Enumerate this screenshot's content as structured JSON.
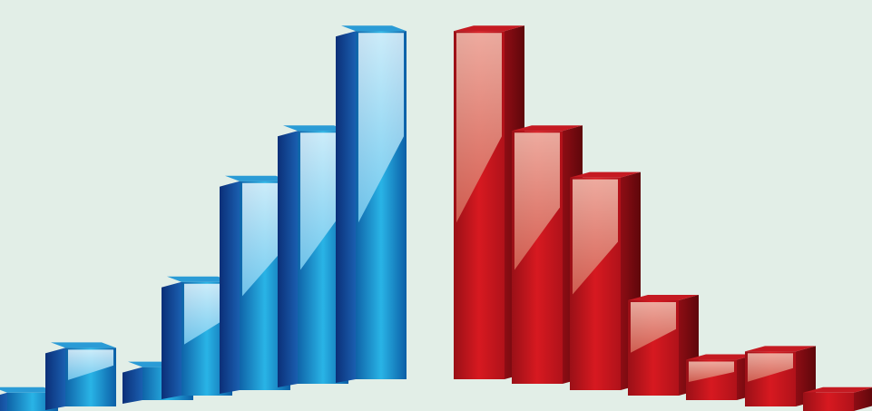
{
  "page": {
    "background": "#e2eee7"
  },
  "chart_data": {
    "type": "bar",
    "style": "3d-glossy",
    "title": "",
    "xlabel": "",
    "ylabel": "",
    "axes_visible": false,
    "grid": false,
    "legend": "none",
    "ylim": [
      0,
      100
    ],
    "series": [
      {
        "color": "#1c8fd0",
        "values": [
          5,
          16,
          9,
          31,
          57,
          69,
          95
        ]
      },
      {
        "color": "#c8161e",
        "values": [
          95,
          69,
          58,
          26,
          11,
          15,
          5
        ]
      }
    ]
  }
}
